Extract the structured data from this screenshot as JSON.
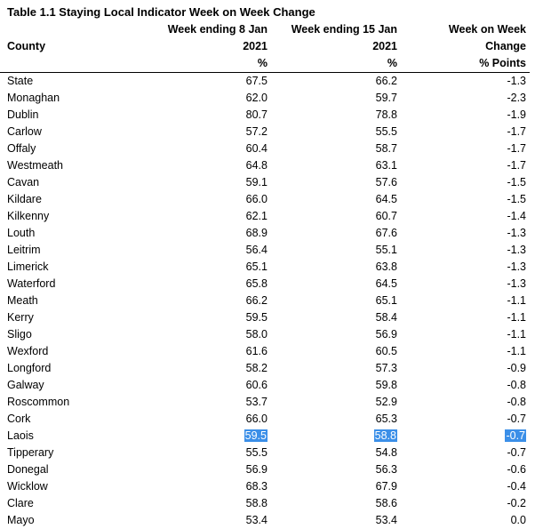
{
  "title": "Table 1.1 Staying Local Indicator Week on Week Change",
  "columns": {
    "county": "County",
    "week1": [
      "Week ending 8 Jan",
      "2021",
      "%"
    ],
    "week2": [
      "Week ending 15 Jan",
      "2021",
      "%"
    ],
    "change": [
      "Week on Week",
      "Change",
      "% Points"
    ]
  },
  "selected_row": "Laois",
  "rows": [
    {
      "county": "State",
      "w1": "67.5",
      "w2": "66.2",
      "chg": "-1.3"
    },
    {
      "county": "Monaghan",
      "w1": "62.0",
      "w2": "59.7",
      "chg": "-2.3"
    },
    {
      "county": "Dublin",
      "w1": "80.7",
      "w2": "78.8",
      "chg": "-1.9"
    },
    {
      "county": "Carlow",
      "w1": "57.2",
      "w2": "55.5",
      "chg": "-1.7"
    },
    {
      "county": "Offaly",
      "w1": "60.4",
      "w2": "58.7",
      "chg": "-1.7"
    },
    {
      "county": "Westmeath",
      "w1": "64.8",
      "w2": "63.1",
      "chg": "-1.7"
    },
    {
      "county": "Cavan",
      "w1": "59.1",
      "w2": "57.6",
      "chg": "-1.5"
    },
    {
      "county": "Kildare",
      "w1": "66.0",
      "w2": "64.5",
      "chg": "-1.5"
    },
    {
      "county": "Kilkenny",
      "w1": "62.1",
      "w2": "60.7",
      "chg": "-1.4"
    },
    {
      "county": "Louth",
      "w1": "68.9",
      "w2": "67.6",
      "chg": "-1.3"
    },
    {
      "county": "Leitrim",
      "w1": "56.4",
      "w2": "55.1",
      "chg": "-1.3"
    },
    {
      "county": "Limerick",
      "w1": "65.1",
      "w2": "63.8",
      "chg": "-1.3"
    },
    {
      "county": "Waterford",
      "w1": "65.8",
      "w2": "64.5",
      "chg": "-1.3"
    },
    {
      "county": "Meath",
      "w1": "66.2",
      "w2": "65.1",
      "chg": "-1.1"
    },
    {
      "county": "Kerry",
      "w1": "59.5",
      "w2": "58.4",
      "chg": "-1.1"
    },
    {
      "county": "Sligo",
      "w1": "58.0",
      "w2": "56.9",
      "chg": "-1.1"
    },
    {
      "county": "Wexford",
      "w1": "61.6",
      "w2": "60.5",
      "chg": "-1.1"
    },
    {
      "county": "Longford",
      "w1": "58.2",
      "w2": "57.3",
      "chg": "-0.9"
    },
    {
      "county": "Galway",
      "w1": "60.6",
      "w2": "59.8",
      "chg": "-0.8"
    },
    {
      "county": "Roscommon",
      "w1": "53.7",
      "w2": "52.9",
      "chg": "-0.8"
    },
    {
      "county": "Cork",
      "w1": "66.0",
      "w2": "65.3",
      "chg": "-0.7"
    },
    {
      "county": "Laois",
      "w1": "59.5",
      "w2": "58.8",
      "chg": "-0.7"
    },
    {
      "county": "Tipperary",
      "w1": "55.5",
      "w2": "54.8",
      "chg": "-0.7"
    },
    {
      "county": "Donegal",
      "w1": "56.9",
      "w2": "56.3",
      "chg": "-0.6"
    },
    {
      "county": "Wicklow",
      "w1": "68.3",
      "w2": "67.9",
      "chg": "-0.4"
    },
    {
      "county": "Clare",
      "w1": "58.8",
      "w2": "58.6",
      "chg": "-0.2"
    },
    {
      "county": "Mayo",
      "w1": "53.4",
      "w2": "53.4",
      "chg": "0.0"
    }
  ],
  "colors": {
    "selection": "#3b8fe8",
    "selection_text": "#ffffff"
  }
}
